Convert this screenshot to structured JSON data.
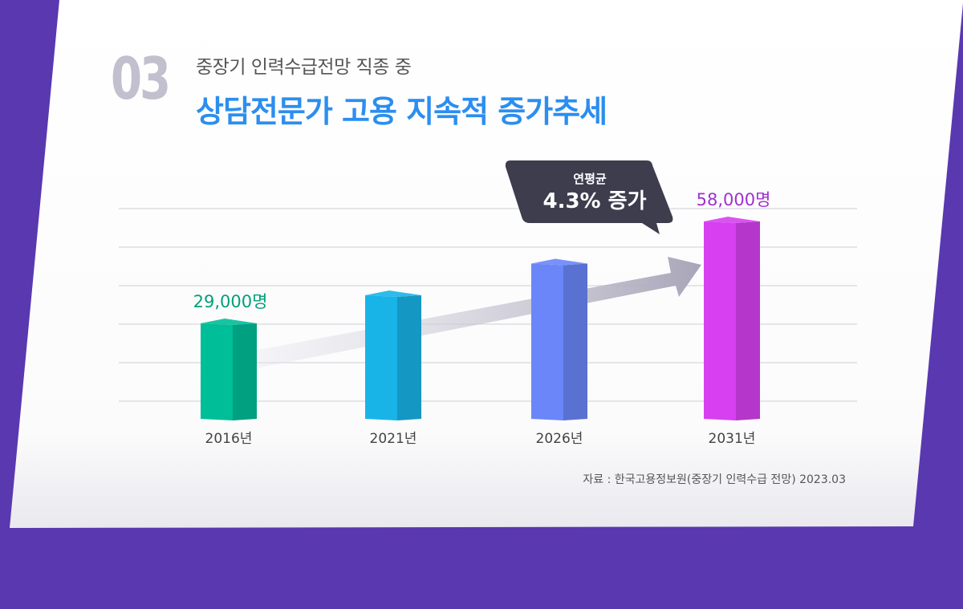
{
  "header": {
    "number": "03",
    "subtitle": "중장기 인력수급전망 직종 중",
    "title": "상담전문가 고용 지속적 증가추세"
  },
  "callout": {
    "line1": "연평균",
    "line2": "4.3% 증가"
  },
  "source": "자료 : 한국고용정보원(중장기 인력수급 전망) 2023.03",
  "colors": {
    "bars": [
      "#00be98",
      "#18b4e8",
      "#6a86f8",
      "#d640f0"
    ],
    "label_first": "#00a07a",
    "label_last": "#a030d0",
    "title": "#2b8ef0",
    "background": "#5a38b0"
  },
  "chart_data": {
    "type": "bar",
    "categories": [
      "2016년",
      "2021년",
      "2026년",
      "2031년"
    ],
    "values": [
      29000,
      37000,
      46000,
      58000
    ],
    "data_labels": [
      "29,000명",
      "",
      "",
      "58,000명"
    ],
    "ylim": [
      0,
      64000
    ],
    "grid": true,
    "title": "",
    "xlabel": "",
    "ylabel": ""
  }
}
